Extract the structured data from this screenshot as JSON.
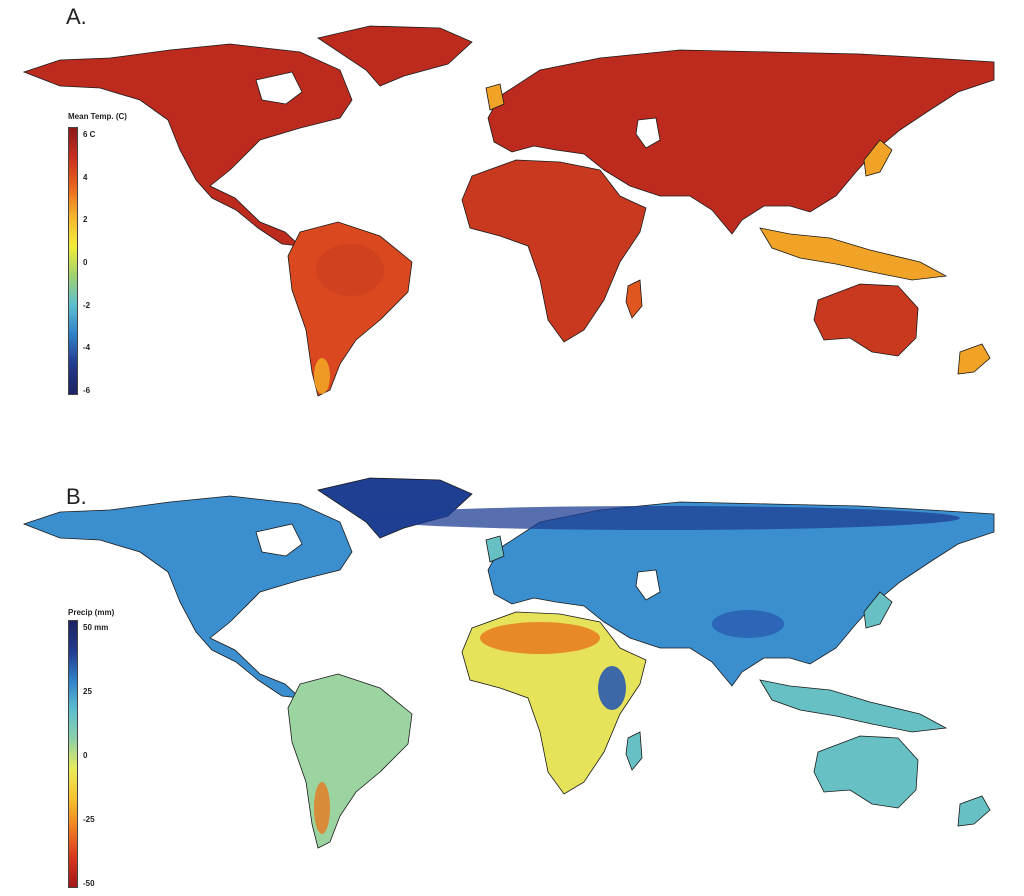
{
  "panel_a": {
    "letter": "A.",
    "legend": {
      "title": "Mean Temp. (C)",
      "ticks": [
        "6  C",
        "4",
        "2",
        "0",
        "-2",
        "-4",
        "-6"
      ],
      "colors": [
        "#8b1a1a",
        "#c8301e",
        "#e8661e",
        "#f6b52c",
        "#f3ee3a",
        "#9fd26e",
        "#5bbfd0",
        "#2f7fc8",
        "#223a8c",
        "#1c2262"
      ]
    },
    "fills": {
      "north": "#bd2b1f",
      "mid": "#d9481f",
      "warm": "#e0561f",
      "south": "#f0a326",
      "arid": "#c83920"
    }
  },
  "panel_b": {
    "letter": "B.",
    "legend": {
      "title": "Precip (mm)",
      "ticks": [
        "50  mm",
        "25",
        "0",
        "-25",
        "-50"
      ],
      "colors": [
        "#1c2262",
        "#223a8c",
        "#2f7fc8",
        "#5bbfd0",
        "#8ed0a8",
        "#e9ec5a",
        "#f6c32e",
        "#ee7f22",
        "#d8361e",
        "#a01818"
      ]
    },
    "fills": {
      "north": "#1f3f93",
      "boreal": "#3b8fcf",
      "mid": "#66c0c4",
      "temperate": "#9bd4a1",
      "dry": "#e6e35b",
      "desert": "#e7791f",
      "wet": "#2a5ab0"
    }
  }
}
